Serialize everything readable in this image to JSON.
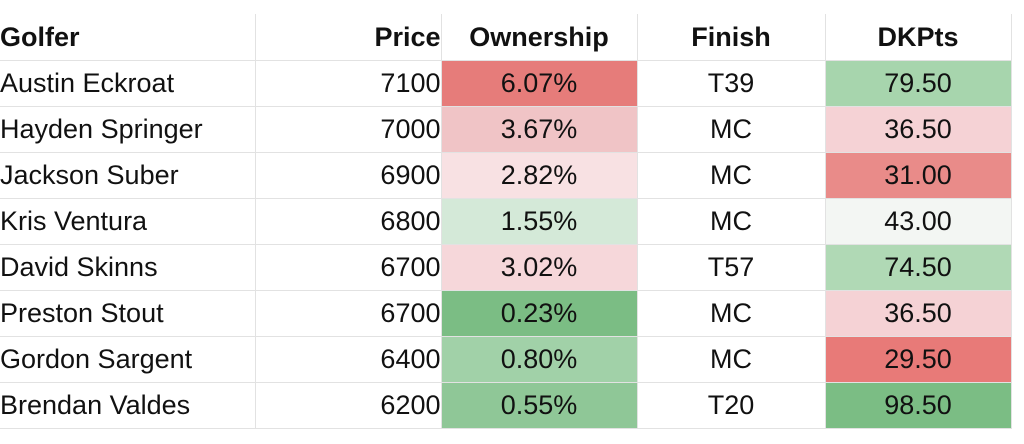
{
  "headers": {
    "golfer": "Golfer",
    "price": "Price",
    "ownership": "Ownership",
    "finish": "Finish",
    "dkpts": "DKPts"
  },
  "rows": [
    {
      "golfer": "Austin Eckroat",
      "price": "7100",
      "ownership": "6.07%",
      "finish": "T39",
      "dkpts": "79.50"
    },
    {
      "golfer": "Hayden Springer",
      "price": "7000",
      "ownership": "3.67%",
      "finish": "MC",
      "dkpts": "36.50"
    },
    {
      "golfer": "Jackson Suber",
      "price": "6900",
      "ownership": "2.82%",
      "finish": "MC",
      "dkpts": "31.00"
    },
    {
      "golfer": "Kris Ventura",
      "price": "6800",
      "ownership": "1.55%",
      "finish": "MC",
      "dkpts": "43.00"
    },
    {
      "golfer": "David Skinns",
      "price": "6700",
      "ownership": "3.02%",
      "finish": "T57",
      "dkpts": "74.50"
    },
    {
      "golfer": "Preston Stout",
      "price": "6700",
      "ownership": "0.23%",
      "finish": "MC",
      "dkpts": "36.50"
    },
    {
      "golfer": "Gordon Sargent",
      "price": "6400",
      "ownership": "0.80%",
      "finish": "MC",
      "dkpts": "29.50"
    },
    {
      "golfer": "Brendan Valdes",
      "price": "6200",
      "ownership": "0.55%",
      "finish": "T20",
      "dkpts": "98.50"
    }
  ],
  "colors": {
    "ownership": [
      "#e67c7a",
      "#f0c4c6",
      "#f8e1e3",
      "#d4e9d8",
      "#f6d7da",
      "#7bbd84",
      "#a1d1a8",
      "#8fc797"
    ],
    "dkpts": [
      "#a7d5ad",
      "#f5d2d5",
      "#e98b89",
      "#f3f6f3",
      "#b0d9b5",
      "#f5d2d5",
      "#e87a78",
      "#7bbd84"
    ]
  }
}
